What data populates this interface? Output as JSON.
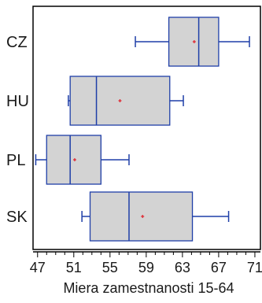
{
  "chart_data": {
    "type": "boxplot",
    "orientation": "horizontal",
    "title": "",
    "xlabel": "Miera zamestnanosti 15-64",
    "ylabel": "",
    "xlim": [
      46.5,
      71.7
    ],
    "xticks": [
      47,
      51,
      55,
      59,
      63,
      67,
      71
    ],
    "xtick_labels": [
      "47",
      "51",
      "55",
      "59",
      "63",
      "67",
      "71"
    ],
    "grid": false,
    "legend": "none",
    "categories": [
      "CZ",
      "HU",
      "PL",
      "SK"
    ],
    "boxes": [
      {
        "category": "CZ",
        "whisker_low": 57.8,
        "q1": 61.5,
        "median": 64.8,
        "q3": 67.0,
        "whisker_high": 70.4,
        "mean": 64.3
      },
      {
        "category": "HU",
        "whisker_low": 50.4,
        "q1": 50.6,
        "median": 53.5,
        "q3": 61.6,
        "whisker_high": 63.1,
        "mean": 56.1
      },
      {
        "category": "PL",
        "whisker_low": 46.8,
        "q1": 48.0,
        "median": 50.6,
        "q3": 54.0,
        "whisker_high": 57.1,
        "mean": 51.1
      },
      {
        "category": "SK",
        "whisker_low": 51.9,
        "q1": 52.8,
        "median": 57.1,
        "q3": 64.1,
        "whisker_high": 68.1,
        "mean": 58.6
      }
    ],
    "colors": {
      "box_fill": "#d3d3d3",
      "box_stroke": "#1f3fa8",
      "whisker": "#1f3fa8",
      "mean_marker": "#e0202a",
      "axis": "#000000"
    }
  }
}
